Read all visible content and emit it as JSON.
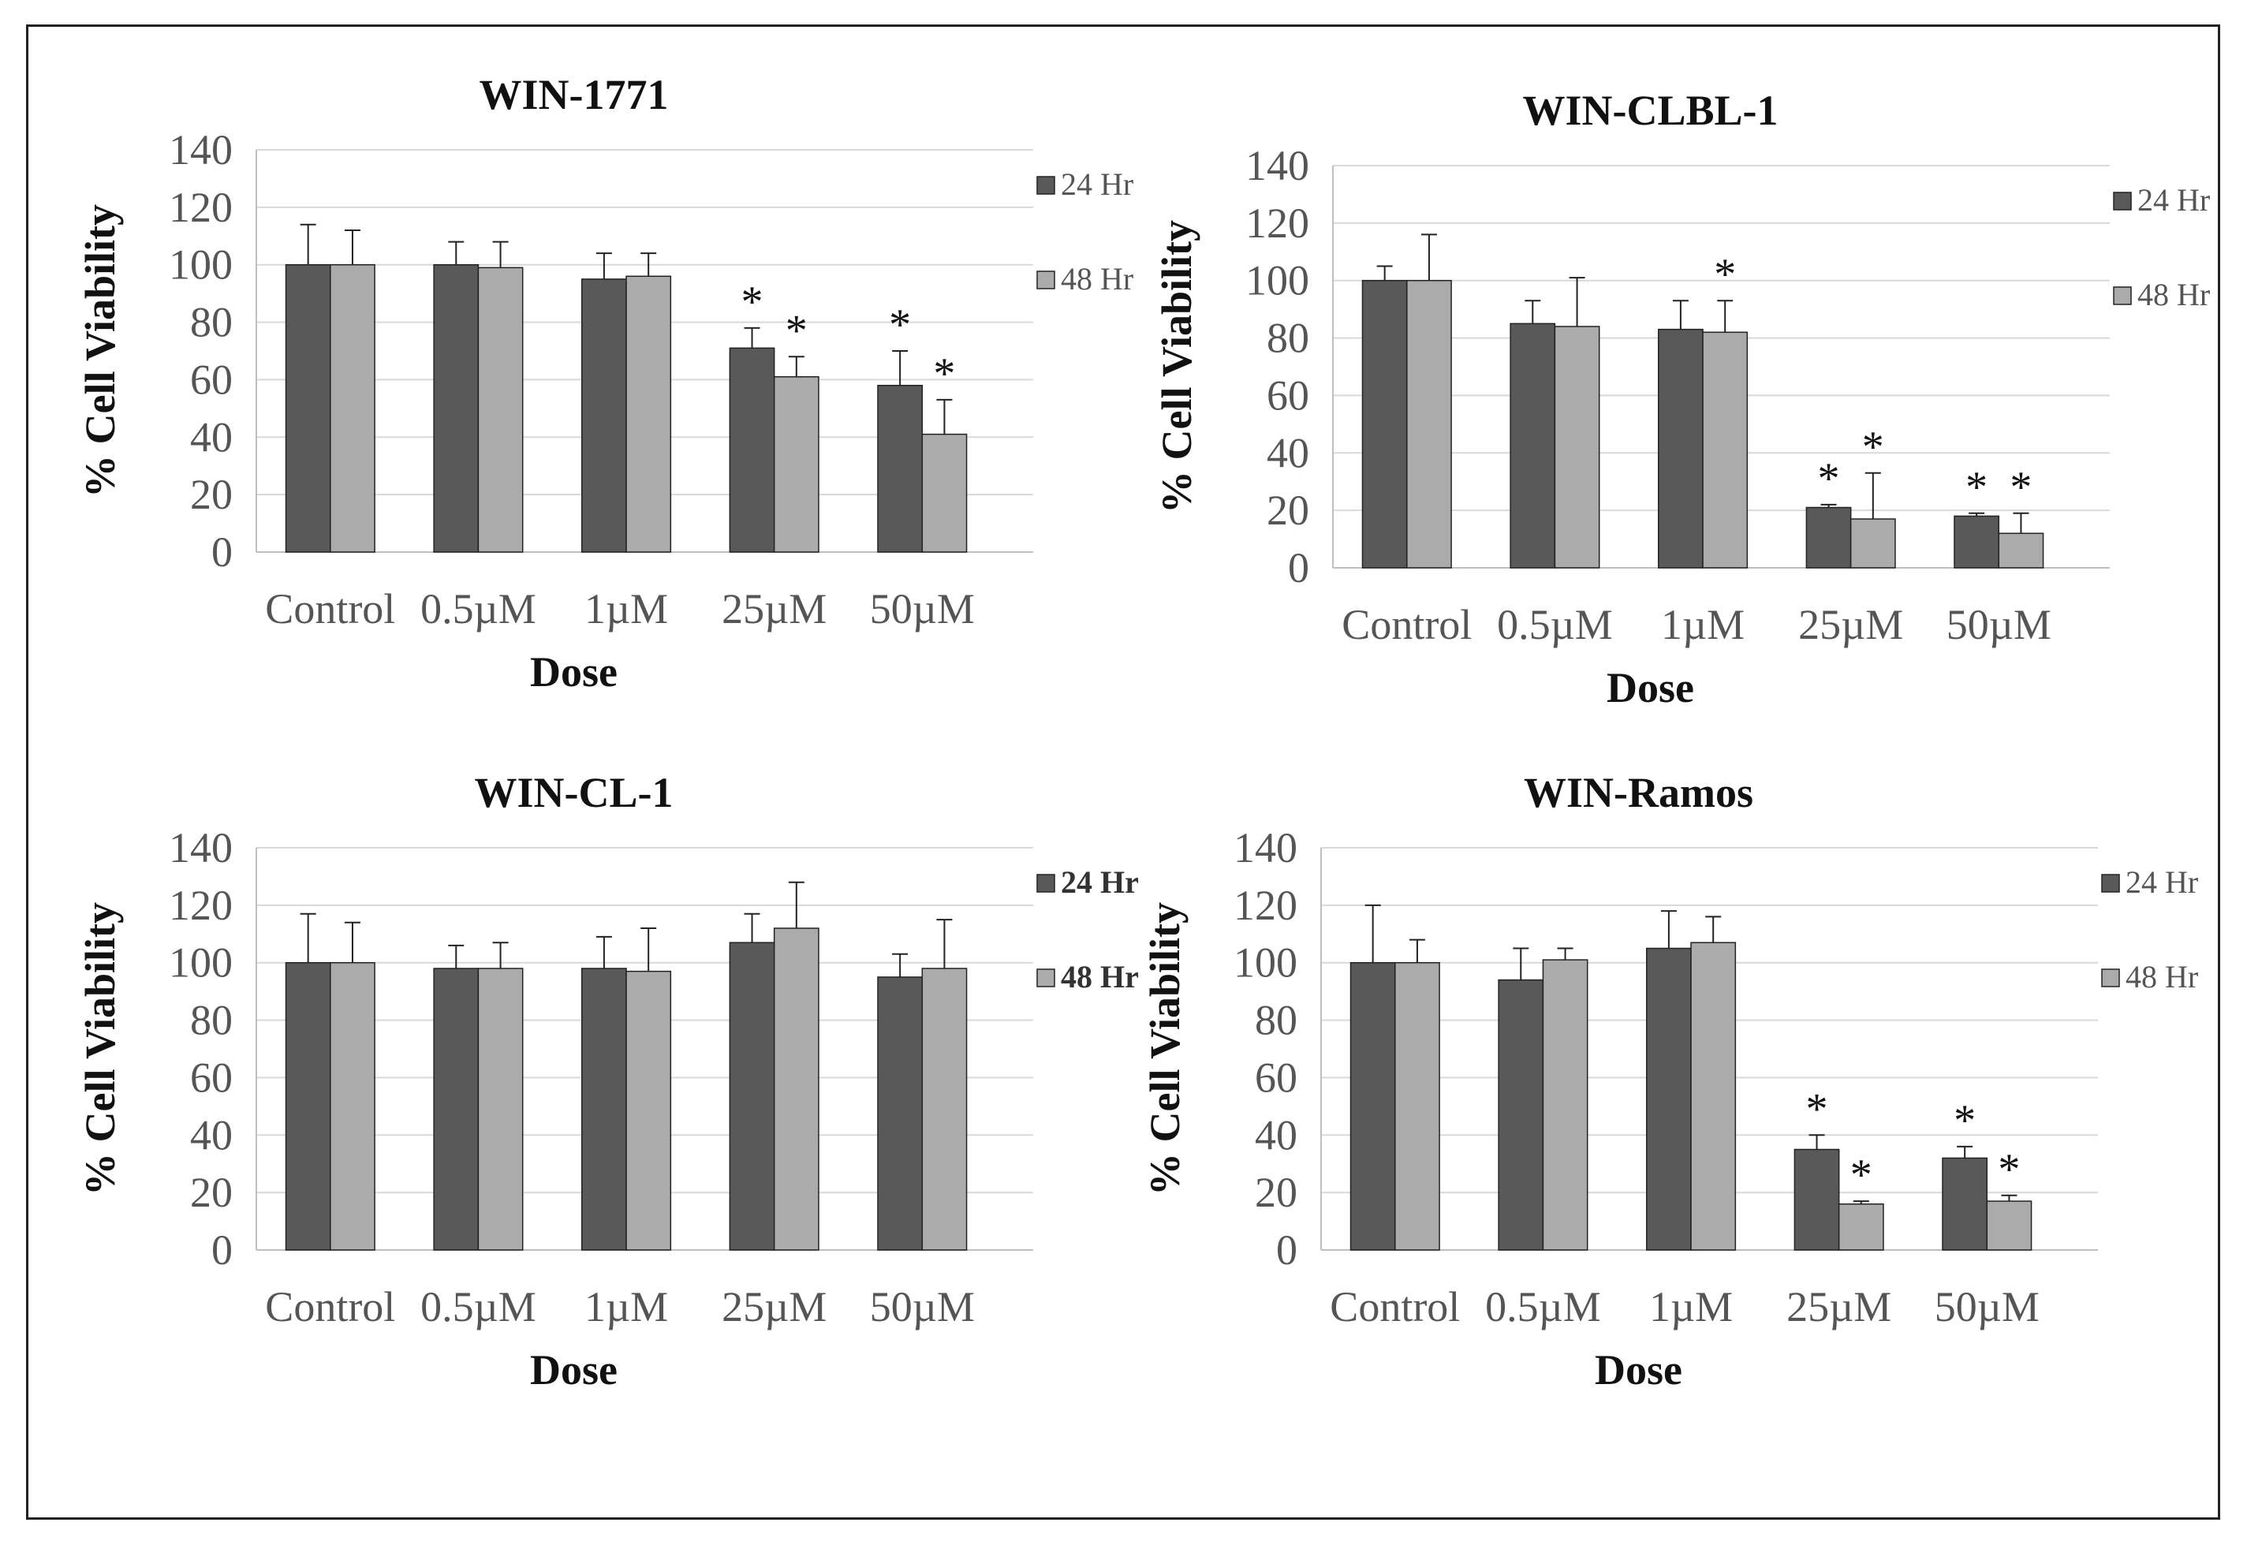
{
  "chart_data": [
    {
      "type": "bar",
      "title": "WIN-1771",
      "xlabel": "Dose",
      "ylabel": "% Cell Viability",
      "ylim": [
        0,
        140
      ],
      "yticks": [
        0,
        20,
        40,
        60,
        80,
        100,
        120,
        140
      ],
      "grid": true,
      "legend_position": "right",
      "legend_bold": false,
      "categories": [
        "Control",
        "0.5µM",
        "1µM",
        "25µM",
        "50µM"
      ],
      "series": [
        {
          "name": "24 Hr",
          "color": "#595959",
          "values": [
            100,
            100,
            95,
            71,
            58
          ],
          "errors": [
            14,
            8,
            9,
            7,
            12
          ],
          "significant": [
            false,
            false,
            false,
            true,
            true
          ]
        },
        {
          "name": "48 Hr",
          "color": "#ababab",
          "values": [
            100,
            99,
            96,
            61,
            41
          ],
          "errors": [
            12,
            9,
            8,
            7,
            12
          ],
          "significant": [
            false,
            false,
            false,
            true,
            true
          ]
        }
      ],
      "significance_marker": "*"
    },
    {
      "type": "bar",
      "title": "WIN-CLBL-1",
      "xlabel": "Dose",
      "ylabel": "% Cell Viability",
      "ylim": [
        0,
        140
      ],
      "yticks": [
        0,
        20,
        40,
        60,
        80,
        100,
        120,
        140
      ],
      "grid": true,
      "legend_position": "right",
      "legend_bold": false,
      "categories": [
        "Control",
        "0.5µM",
        "1µM",
        "25µM",
        "50µM"
      ],
      "series": [
        {
          "name": "24 Hr",
          "color": "#595959",
          "values": [
            100,
            85,
            83,
            21,
            18
          ],
          "errors": [
            5,
            8,
            10,
            1,
            1
          ],
          "significant": [
            false,
            false,
            false,
            true,
            true
          ]
        },
        {
          "name": "48 Hr",
          "color": "#ababab",
          "values": [
            100,
            84,
            82,
            17,
            12
          ],
          "errors": [
            16,
            17,
            11,
            16,
            7
          ],
          "significant": [
            false,
            false,
            true,
            true,
            true
          ]
        }
      ],
      "significance_marker": "*"
    },
    {
      "type": "bar",
      "title": "WIN-CL-1",
      "xlabel": "Dose",
      "ylabel": "% Cell Viability",
      "ylim": [
        0,
        140
      ],
      "yticks": [
        0,
        20,
        40,
        60,
        80,
        100,
        120,
        140
      ],
      "grid": true,
      "legend_position": "right",
      "legend_bold": true,
      "categories": [
        "Control",
        "0.5µM",
        "1µM",
        "25µM",
        "50µM"
      ],
      "series": [
        {
          "name": "24 Hr",
          "color": "#595959",
          "values": [
            100,
            98,
            98,
            107,
            95
          ],
          "errors": [
            17,
            8,
            11,
            10,
            8
          ],
          "significant": [
            false,
            false,
            false,
            false,
            false
          ]
        },
        {
          "name": "48 Hr",
          "color": "#ababab",
          "values": [
            100,
            98,
            97,
            112,
            98
          ],
          "errors": [
            14,
            9,
            15,
            16,
            17
          ],
          "significant": [
            false,
            false,
            false,
            false,
            false
          ]
        }
      ],
      "significance_marker": "*"
    },
    {
      "type": "bar",
      "title": "WIN-Ramos",
      "xlabel": "Dose",
      "ylabel": "% Cell Viability",
      "ylim": [
        0,
        140
      ],
      "yticks": [
        0,
        20,
        40,
        60,
        80,
        100,
        120,
        140
      ],
      "grid": true,
      "legend_position": "right",
      "legend_bold": false,
      "categories": [
        "Control",
        "0.5µM",
        "1µM",
        "25µM",
        "50µM"
      ],
      "series": [
        {
          "name": "24 Hr",
          "color": "#595959",
          "values": [
            100,
            94,
            105,
            35,
            32
          ],
          "errors": [
            20,
            11,
            13,
            5,
            4
          ],
          "significant": [
            false,
            false,
            false,
            true,
            true
          ]
        },
        {
          "name": "48 Hr",
          "color": "#ababab",
          "values": [
            100,
            101,
            107,
            16,
            17
          ],
          "errors": [
            8,
            4,
            9,
            1,
            2
          ],
          "significant": [
            false,
            false,
            false,
            true,
            true
          ]
        }
      ],
      "significance_marker": "*"
    }
  ]
}
